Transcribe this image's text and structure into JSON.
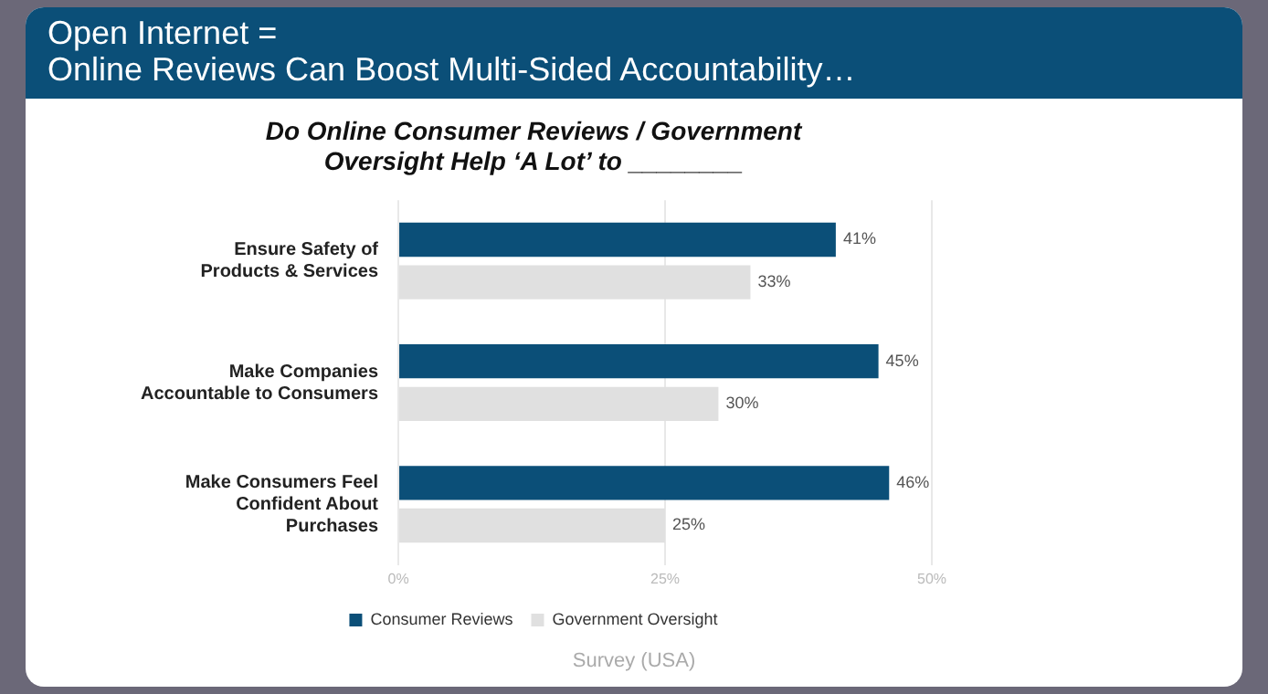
{
  "chart_data": {
    "type": "bar",
    "orientation": "horizontal",
    "title": "Open Internet =\nOnline Reviews Can Boost Multi-Sided Accountability…",
    "subtitle": "Do Online Consumer Reviews / Government\nOversight Help ‘A Lot’ to ________",
    "categories": [
      "Ensure Safety of Products & Services",
      "Make Companies Accountable to Consumers",
      "Make Consumers Feel Confident About Purchases"
    ],
    "series": [
      {
        "name": "Consumer Reviews",
        "color": "#0b4f78",
        "values": [
          41,
          45,
          46
        ],
        "value_labels": [
          "41%",
          "45%",
          "46%"
        ]
      },
      {
        "name": "Government Oversight",
        "color": "#e0e0e0",
        "values": [
          33,
          30,
          25
        ],
        "value_labels": [
          "33%",
          "30%",
          "25%"
        ]
      }
    ],
    "xlim": [
      0,
      50
    ],
    "xticks": [
      {
        "value": 0,
        "label": "0%"
      },
      {
        "value": 25,
        "label": "25%"
      },
      {
        "value": 50,
        "label": "50%"
      }
    ],
    "grid": "x",
    "legend": "bottom",
    "annotations": [
      "Survey (USA)"
    ]
  }
}
